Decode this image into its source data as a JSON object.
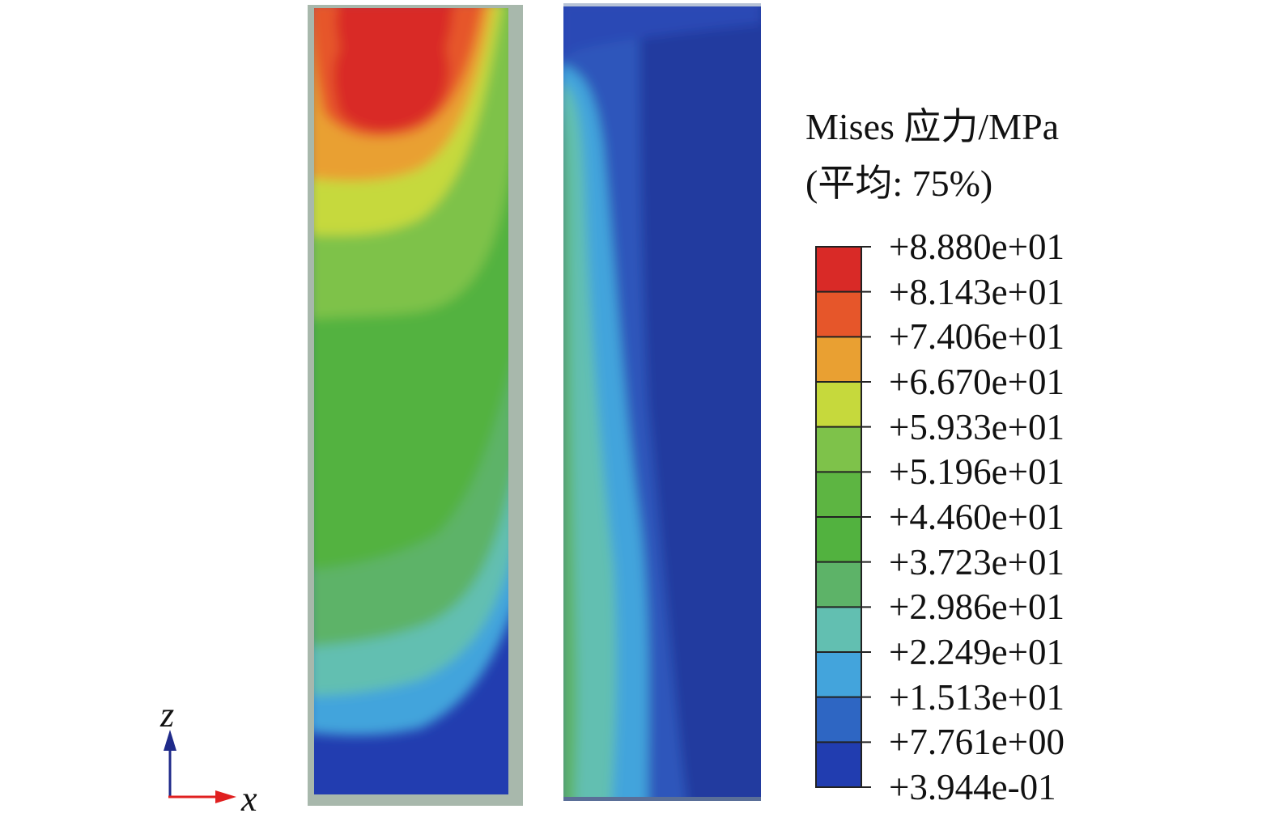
{
  "legend": {
    "title_line_1": "Mises 应力/MPa",
    "title_line_2": "(平均: 75%)",
    "ticks": [
      "+8.880e+01",
      "+8.143e+01",
      "+7.406e+01",
      "+6.670e+01",
      "+5.933e+01",
      "+5.196e+01",
      "+4.460e+01",
      "+3.723e+01",
      "+2.986e+01",
      "+2.249e+01",
      "+1.513e+01",
      "+7.761e+00",
      "+3.944e-01"
    ],
    "band_colors": [
      "#d92a27",
      "#e6562a",
      "#e9a032",
      "#c6d93c",
      "#7ec24a",
      "#5db542",
      "#52b23f",
      "#5db368",
      "#62bfb1",
      "#43a4dc",
      "#2e66c3",
      "#213db0"
    ]
  },
  "axes": {
    "vertical": "z",
    "horizontal": "x",
    "vertical_color": "#1f2a8a",
    "horizontal_color": "#e02020"
  }
}
